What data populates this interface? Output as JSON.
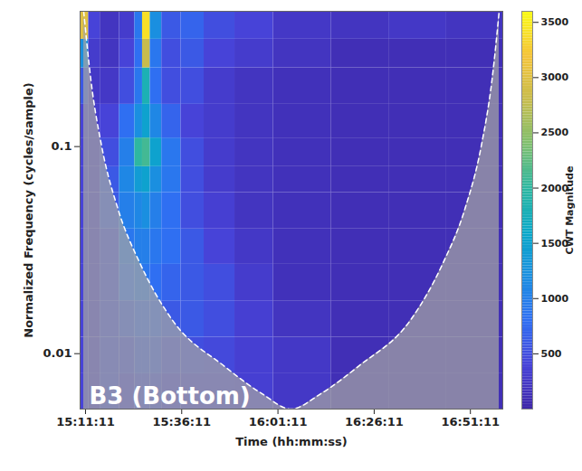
{
  "chart_data": {
    "type": "heatmap",
    "xlabel": "Time (hh:mm:ss)",
    "ylabel": "Normalized Frequency (cycles/sample)",
    "annotation": "B3 (Bottom)",
    "log": "y",
    "xlim": [
      "15:09:47",
      "16:59:36"
    ],
    "ylim": [
      0.0054,
      0.45
    ],
    "xticks": [
      "15:11:11",
      "15:36:11",
      "16:01:11",
      "16:26:11",
      "16:51:11"
    ],
    "yticks": [
      0.01,
      0.1
    ],
    "time_bins": [
      "15:09:47",
      "15:12:00",
      "15:15:00",
      "15:20:00",
      "15:24:00",
      "15:26:00",
      "15:28:00",
      "15:31:00",
      "15:36:00",
      "15:42:00",
      "15:50:00",
      "16:00:00",
      "16:15:00",
      "16:30:00",
      "16:45:00",
      "16:59:36"
    ],
    "frequency_bins": [
      0.0054,
      0.008,
      0.012,
      0.018,
      0.027,
      0.04,
      0.06,
      0.08,
      0.11,
      0.16,
      0.24,
      0.33,
      0.45
    ],
    "magnitude": [
      [
        400,
        300,
        500,
        400,
        500,
        500,
        500,
        400,
        400,
        400,
        350,
        250,
        120,
        120,
        120
      ],
      [
        400,
        300,
        500,
        500,
        600,
        600,
        600,
        500,
        500,
        450,
        350,
        250,
        120,
        120,
        120
      ],
      [
        400,
        300,
        500,
        600,
        700,
        700,
        700,
        600,
        600,
        500,
        350,
        200,
        120,
        120,
        120
      ],
      [
        400,
        300,
        500,
        800,
        900,
        900,
        800,
        700,
        600,
        500,
        300,
        150,
        120,
        120,
        120
      ],
      [
        400,
        300,
        500,
        900,
        1000,
        1000,
        900,
        800,
        600,
        400,
        250,
        150,
        120,
        120,
        120
      ],
      [
        400,
        300,
        600,
        1000,
        1100,
        1200,
        1000,
        800,
        500,
        350,
        200,
        150,
        120,
        120,
        120
      ],
      [
        400,
        300,
        600,
        1100,
        1400,
        1500,
        1200,
        900,
        500,
        300,
        200,
        150,
        120,
        120,
        120
      ],
      [
        400,
        300,
        500,
        1000,
        2000,
        2100,
        1500,
        900,
        500,
        300,
        200,
        150,
        120,
        120,
        120
      ],
      [
        400,
        300,
        400,
        800,
        1200,
        1500,
        1100,
        700,
        400,
        300,
        200,
        150,
        120,
        120,
        120
      ],
      [
        600,
        250,
        250,
        500,
        900,
        1800,
        800,
        500,
        500,
        300,
        200,
        150,
        120,
        120,
        120
      ],
      [
        1200,
        300,
        200,
        400,
        800,
        2800,
        900,
        500,
        600,
        400,
        300,
        200,
        120,
        120,
        120
      ],
      [
        3000,
        400,
        200,
        300,
        900,
        3400,
        1200,
        600,
        700,
        500,
        400,
        250,
        200,
        250,
        200
      ]
    ],
    "cone_of_influence": {
      "x": [
        "15:10:43",
        "15:12:35",
        "15:15:24",
        "15:19:37",
        "15:25:28",
        "15:33:40",
        "15:47:15",
        "15:57:05",
        "16:04:34",
        "16:12:18",
        "16:22:08",
        "16:35:43",
        "16:43:55",
        "16:49:46",
        "16:53:59",
        "16:56:48",
        "16:58:40"
      ],
      "y": [
        0.45,
        0.21,
        0.1,
        0.05,
        0.027,
        0.0146,
        0.0087,
        0.0064,
        0.0054,
        0.0064,
        0.0087,
        0.0146,
        0.027,
        0.05,
        0.1,
        0.21,
        0.45
      ]
    },
    "colorbar_label": "CWT Magnitude",
    "colorbar_range": [
      0,
      3600
    ],
    "colorbar_ticks": [
      500,
      1000,
      1500,
      2000,
      2500,
      3000,
      3500
    ]
  }
}
